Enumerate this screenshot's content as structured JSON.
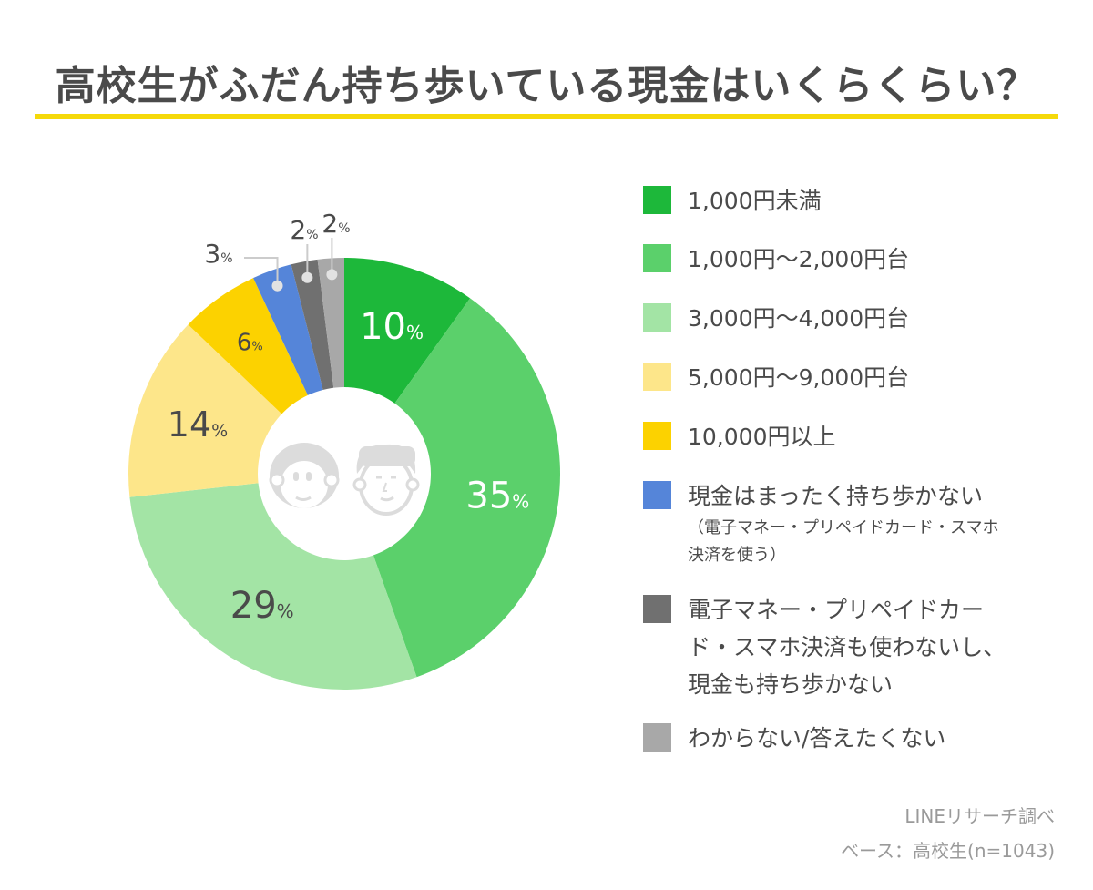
{
  "title": "高校生がふだん持ち歩いている現金はいくらくらい？",
  "chart_data": {
    "type": "pie",
    "donut": true,
    "title": "高校生がふだん持ち歩いている現金はいくらくらい？",
    "unit": "%",
    "legend_position": "right",
    "slices": [
      {
        "label": "1,000円未満",
        "value": 10,
        "color": "#1db83a"
      },
      {
        "label": "1,000円〜2,000円台",
        "value": 35,
        "color": "#5bd06b"
      },
      {
        "label": "3,000円〜4,000円台",
        "value": 29,
        "color": "#a3e4a5"
      },
      {
        "label": "5,000円〜9,000円台",
        "value": 14,
        "color": "#fde68a"
      },
      {
        "label": "10,000円以上",
        "value": 6,
        "color": "#fcd200"
      },
      {
        "label": "現金はまったく持ち歩かない",
        "sub": "（電子マネー・プリペイドカード・スマホ決済を使う）",
        "value": 3,
        "color": "#5585d9"
      },
      {
        "label": "電子マネー・プリペイドカード・スマホ決済も使わないし、現金も持ち歩かない",
        "value": 2,
        "color": "#707070"
      },
      {
        "label": "わからない/答えたくない",
        "value": 2,
        "color": "#a8a8a8"
      }
    ]
  },
  "legend": {
    "items": [
      {
        "lines": [
          "1,000円未満"
        ]
      },
      {
        "lines": [
          "1,000円〜2,000円台"
        ]
      },
      {
        "lines": [
          "3,000円〜4,000円台"
        ]
      },
      {
        "lines": [
          "5,000円〜9,000円台"
        ]
      },
      {
        "lines": [
          "10,000円以上"
        ]
      },
      {
        "lines": [
          "現金はまったく持ち歩かない"
        ],
        "sub": [
          "（電子マネー・プリペイドカード・スマホ",
          "決済を使う）"
        ]
      },
      {
        "lines": [
          "電子マネー・プリペイドカー",
          "ド・スマホ決済も使わないし、",
          "現金も持ち歩かない"
        ]
      },
      {
        "lines": [
          "わからない/答えたくない"
        ]
      }
    ]
  },
  "source": {
    "line1": "LINEリサーチ調べ",
    "line2": "ベース：高校生(n=1043)"
  }
}
